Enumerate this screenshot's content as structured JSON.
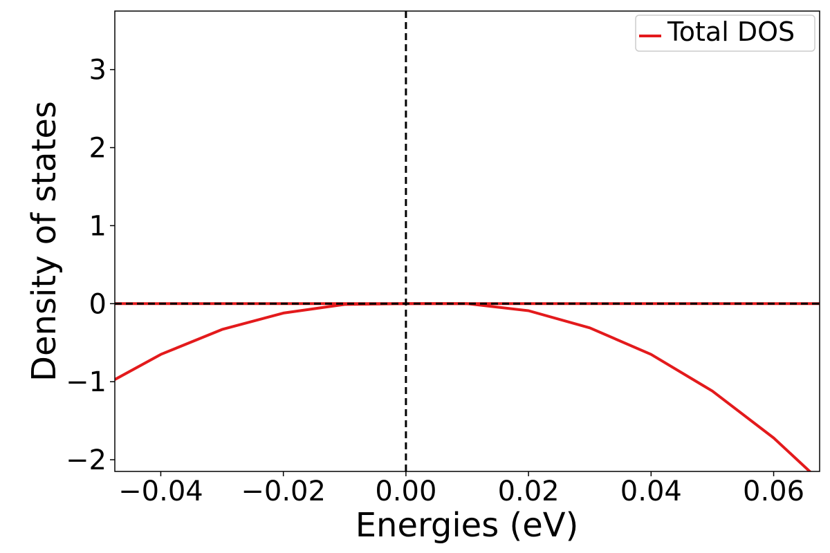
{
  "chart_data": {
    "type": "line",
    "title": "",
    "xlabel": "Energies (eV)",
    "ylabel": "Density of states",
    "xlim": [
      -0.0475,
      0.0675
    ],
    "ylim": [
      -2.15,
      3.75
    ],
    "xticks": [
      -0.04,
      -0.02,
      0.0,
      0.02,
      0.04,
      0.06
    ],
    "xtick_labels": [
      "−0.04",
      "−0.02",
      "0.00",
      "0.02",
      "0.04",
      "0.06"
    ],
    "yticks": [
      -2,
      -1,
      0,
      1,
      2,
      3
    ],
    "ytick_labels": [
      "−2",
      "−1",
      "0",
      "1",
      "2",
      "3"
    ],
    "grid": false,
    "legend_position": "top-right",
    "reference_lines": {
      "vertical_x": 0.0,
      "horizontal_y": 0.0,
      "style": "dashed",
      "color": "#000000"
    },
    "series": [
      {
        "name": "Total DOS",
        "color": "#e31a1c",
        "x": [
          -0.05,
          -0.04,
          -0.03,
          -0.02,
          -0.01,
          0.0,
          0.01,
          0.02,
          0.03,
          0.04,
          0.05,
          0.06,
          0.07
        ],
        "y": [
          -1.08,
          -0.65,
          -0.33,
          -0.12,
          -0.01,
          0.0,
          0.0,
          -0.09,
          -0.31,
          -0.65,
          -1.12,
          -1.72,
          -2.45
        ]
      },
      {
        "name": "",
        "color": "#e31a1c",
        "x": [
          -0.0475,
          0.0675
        ],
        "y": [
          0.0,
          0.0
        ]
      }
    ]
  }
}
